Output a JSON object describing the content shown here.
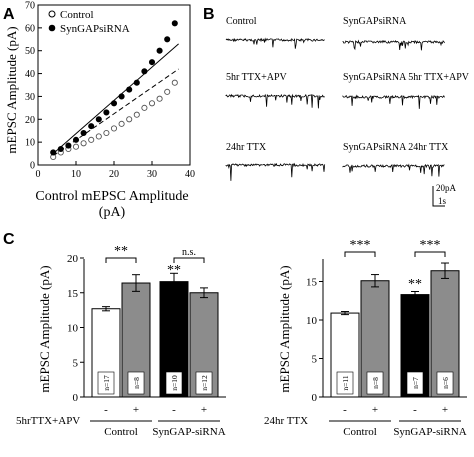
{
  "panels": {
    "A": {
      "letter": "A",
      "ylabel": "mEPSC Amplitude (pA)",
      "xlabel_line1": "Control mEPSC Amplitude",
      "xlabel_line2": "(pA)",
      "xticks": [
        "0",
        "10",
        "20",
        "30",
        "40"
      ],
      "yticks": [
        "0",
        "10",
        "20",
        "30",
        "40",
        "50",
        "60",
        "70"
      ],
      "legend": [
        "Control",
        "SynGAPsiRNA"
      ]
    },
    "B": {
      "letter": "B",
      "trace_labels": [
        "Control",
        "SynGAPsiRNA",
        "5hr TTX+APV",
        "SynGAPsiRNA  5hr TTX+APV",
        "24hr TTX",
        "SynGAPsiRNA  24hr TTX"
      ],
      "scale_amplitude": "20pA",
      "scale_time": "1s"
    },
    "C": {
      "letter": "C",
      "left": {
        "ylabel": "mEPSC Amplitude (pA)",
        "yticks": [
          "0",
          "5",
          "10",
          "15",
          "20"
        ],
        "treatment_label": "5hrTTX+APV",
        "treatment_marks": [
          "-",
          "+",
          "-",
          "+"
        ],
        "group_labels": [
          "Control",
          "SynGAP-siRNA"
        ],
        "n_labels": [
          "n=17",
          "n=8",
          "n=10",
          "n=12"
        ],
        "sig_brackets": [
          "**",
          "n.s."
        ],
        "sig_above_bar": "**"
      },
      "right": {
        "ylabel": "mEPSC Amplitude (pA)",
        "yticks": [
          "0",
          "5",
          "10",
          "15"
        ],
        "treatment_label": "24hr TTX",
        "treatment_marks": [
          "-",
          "+",
          "-",
          "+"
        ],
        "group_labels": [
          "Control",
          "SynGAP-siRNA"
        ],
        "n_labels": [
          "n=11",
          "n=8",
          "n=7",
          "n=6"
        ],
        "sig_brackets": [
          "***",
          "***"
        ],
        "sig_above_bar": "**"
      }
    }
  },
  "chart_data": [
    {
      "type": "scatter",
      "xlabel": "Control mEPSC Amplitude (pA)",
      "ylabel": "mEPSC Amplitude (pA)",
      "xlim": [
        0,
        40
      ],
      "ylim": [
        0,
        70
      ],
      "series": [
        {
          "name": "Control",
          "x": [
            4,
            6,
            8,
            10,
            12,
            14,
            16,
            18,
            20,
            22,
            24,
            26,
            28,
            30,
            32,
            34,
            36
          ],
          "y": [
            3.5,
            5.5,
            7,
            8,
            9.5,
            11,
            12.5,
            14,
            16,
            18,
            20,
            22,
            25,
            27,
            29,
            32,
            36
          ]
        },
        {
          "name": "SynGAPsiRNA",
          "x": [
            4,
            6,
            8,
            10,
            12,
            14,
            16,
            18,
            20,
            22,
            24,
            26,
            28,
            30,
            32,
            34,
            36
          ],
          "y": [
            5.5,
            7,
            8.5,
            11,
            14,
            17,
            20,
            23,
            27,
            30,
            33,
            36,
            41,
            45,
            50,
            55,
            62
          ]
        }
      ],
      "fit_lines": [
        {
          "style": "solid",
          "x": [
            4,
            37
          ],
          "y": [
            5,
            53
          ]
        },
        {
          "style": "dashed",
          "x": [
            4,
            37
          ],
          "y": [
            4,
            42
          ]
        }
      ]
    },
    {
      "type": "bar",
      "title": "",
      "ylabel": "mEPSC Amplitude (pA)",
      "ylim": [
        0,
        20
      ],
      "categories": [
        "Control -",
        "Control +",
        "SynGAP-siRNA -",
        "SynGAP-siRNA +"
      ],
      "values": [
        12.7,
        16.4,
        16.6,
        15.0
      ],
      "errors": [
        0.3,
        1.2,
        1.2,
        0.7
      ],
      "colors": [
        "#ffffff",
        "#8c8c8c",
        "#000000",
        "#8c8c8c"
      ]
    },
    {
      "type": "bar",
      "title": "",
      "ylabel": "mEPSC Amplitude (pA)",
      "ylim": [
        0,
        18
      ],
      "categories": [
        "Control -",
        "Control +",
        "SynGAP-siRNA -",
        "SynGAP-siRNA +"
      ],
      "values": [
        10.9,
        15.1,
        13.3,
        16.4
      ],
      "errors": [
        0.2,
        0.8,
        0.4,
        1.0
      ],
      "colors": [
        "#ffffff",
        "#8c8c8c",
        "#000000",
        "#8c8c8c"
      ]
    }
  ]
}
